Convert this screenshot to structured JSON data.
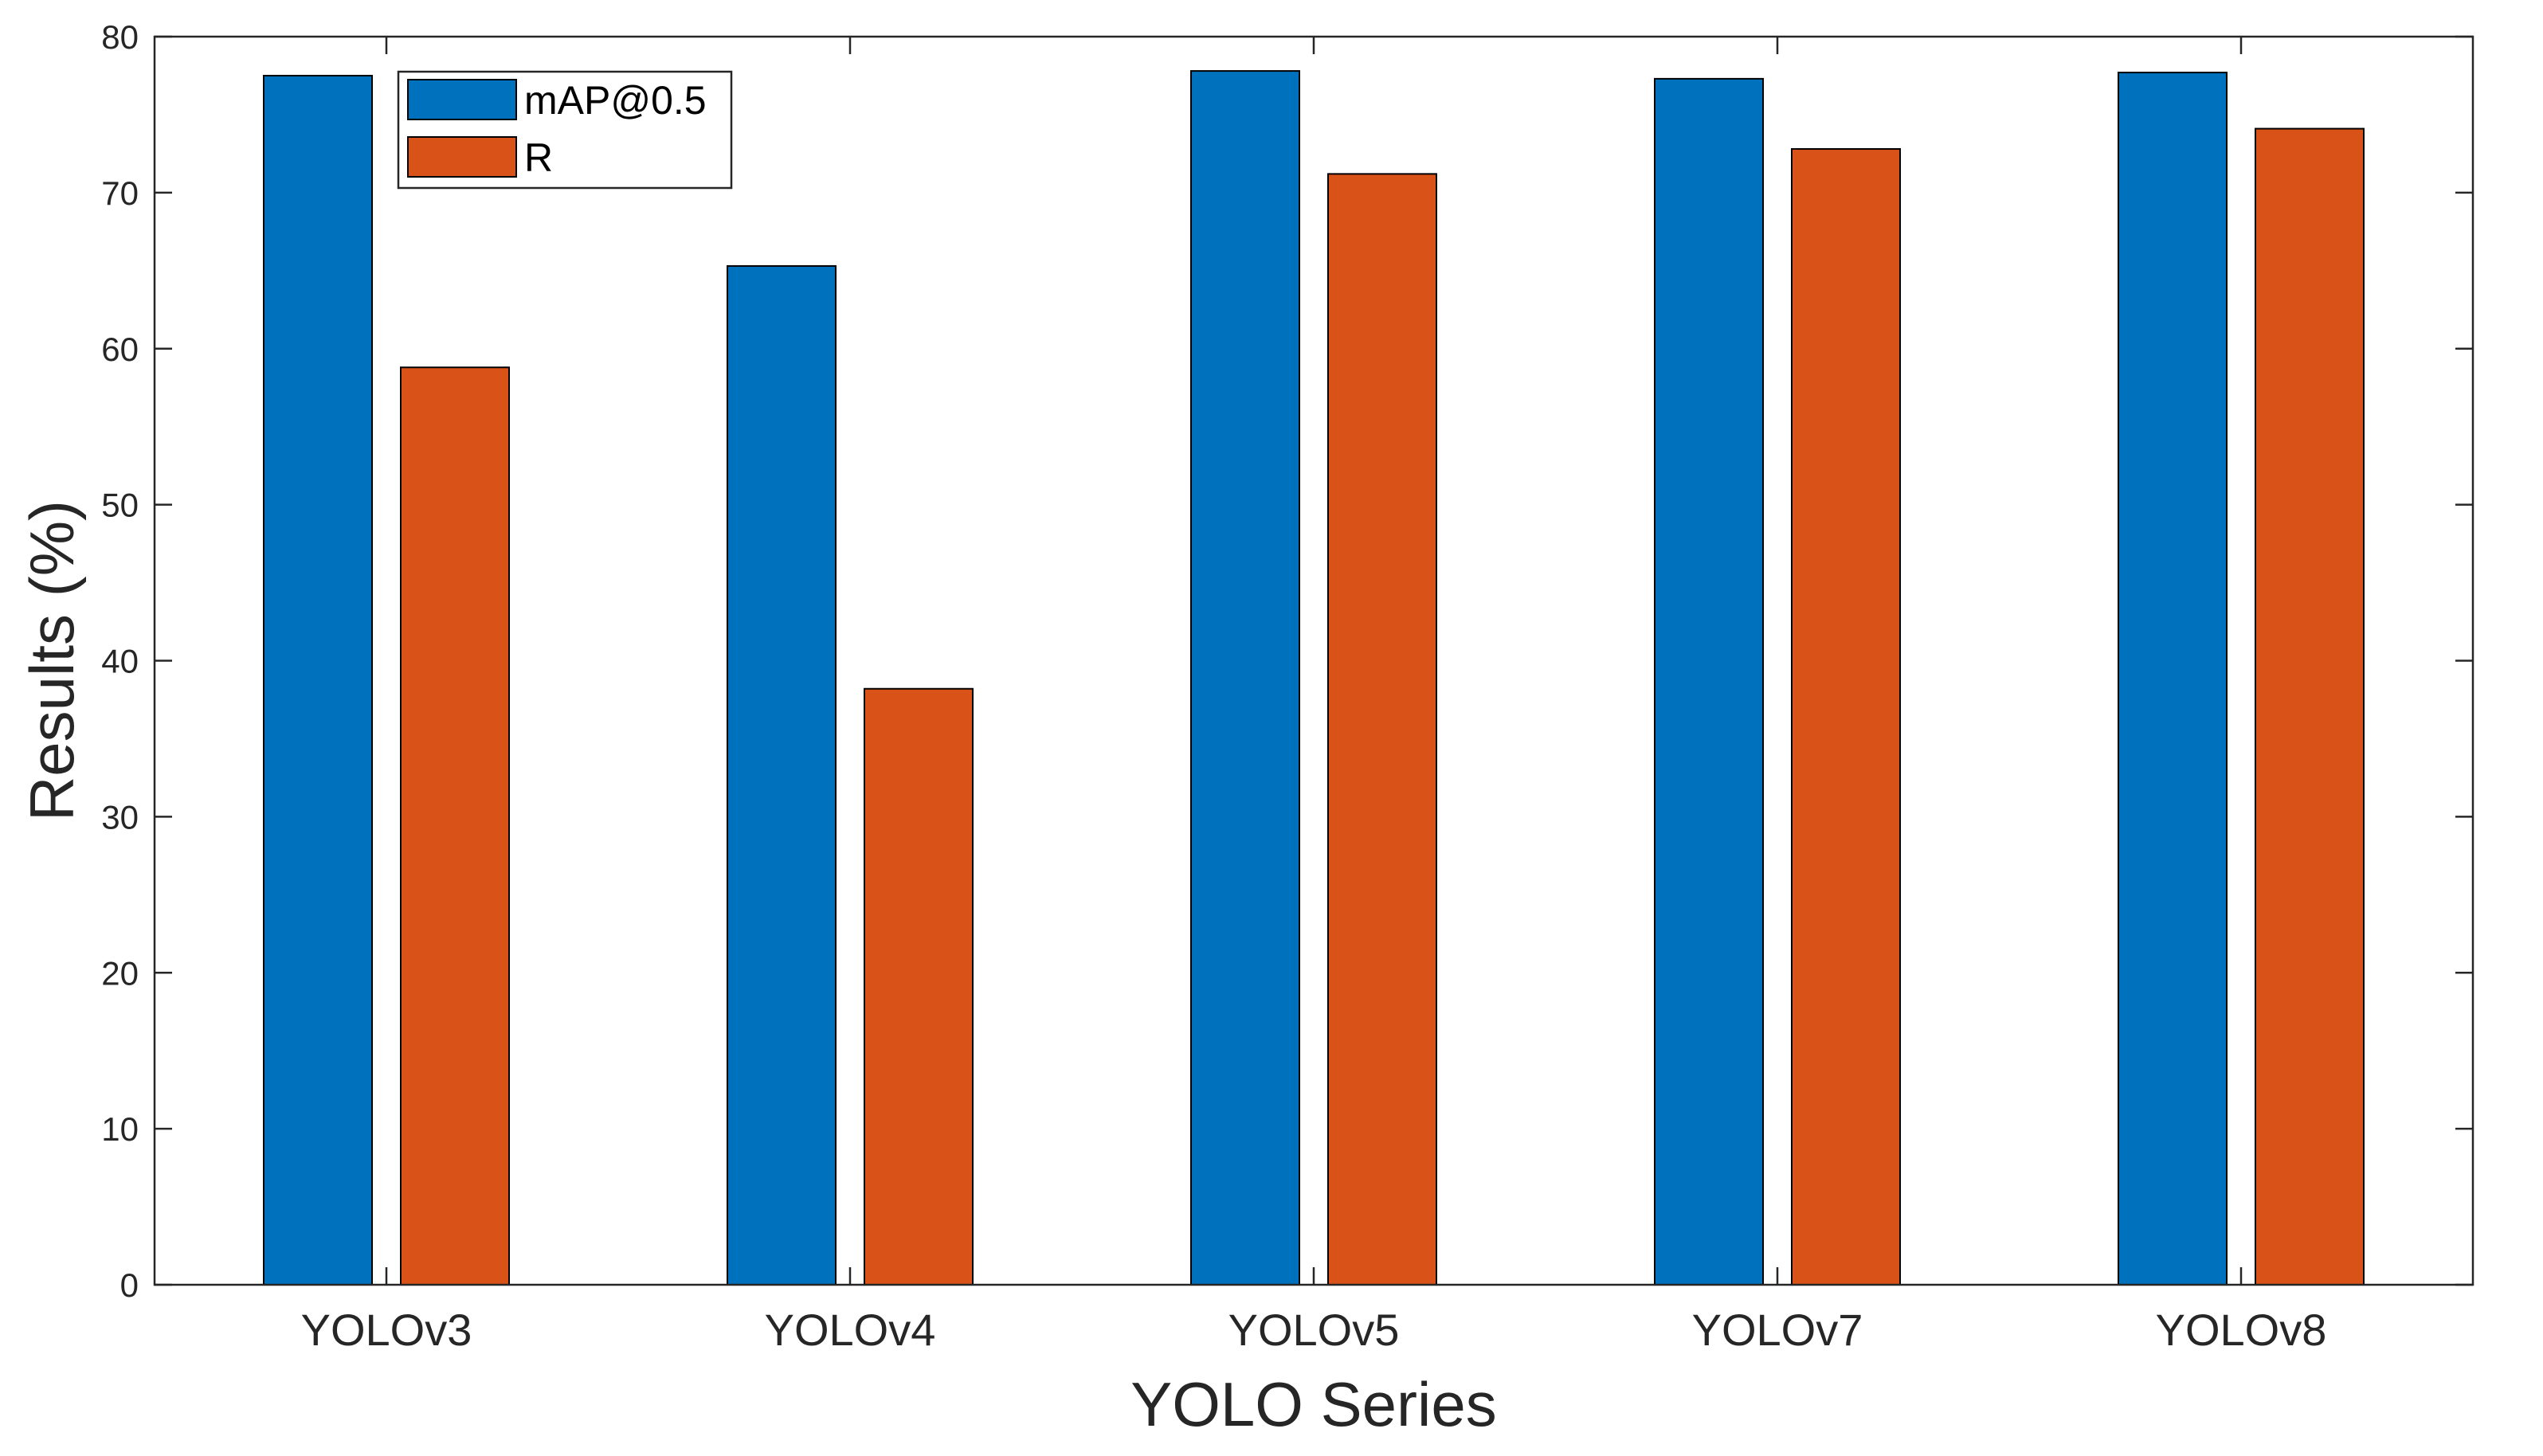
{
  "chart_data": {
    "type": "bar",
    "title": "",
    "xlabel": "YOLO Series",
    "ylabel": "Results (%)",
    "categories": [
      "YOLOv3",
      "YOLOv4",
      "YOLOv5",
      "YOLOv7",
      "YOLOv8"
    ],
    "series": [
      {
        "name": "mAP@0.5",
        "color": "#0072BD",
        "values": [
          77.5,
          65.3,
          77.8,
          77.3,
          77.7
        ]
      },
      {
        "name": "R",
        "color": "#D95319",
        "values": [
          58.8,
          38.2,
          71.2,
          72.8,
          74.1
        ]
      }
    ],
    "ylim": [
      0,
      80
    ],
    "yticks": [
      0,
      10,
      20,
      30,
      40,
      50,
      60,
      70,
      80
    ],
    "grid": false,
    "legend_position": "top-left"
  }
}
